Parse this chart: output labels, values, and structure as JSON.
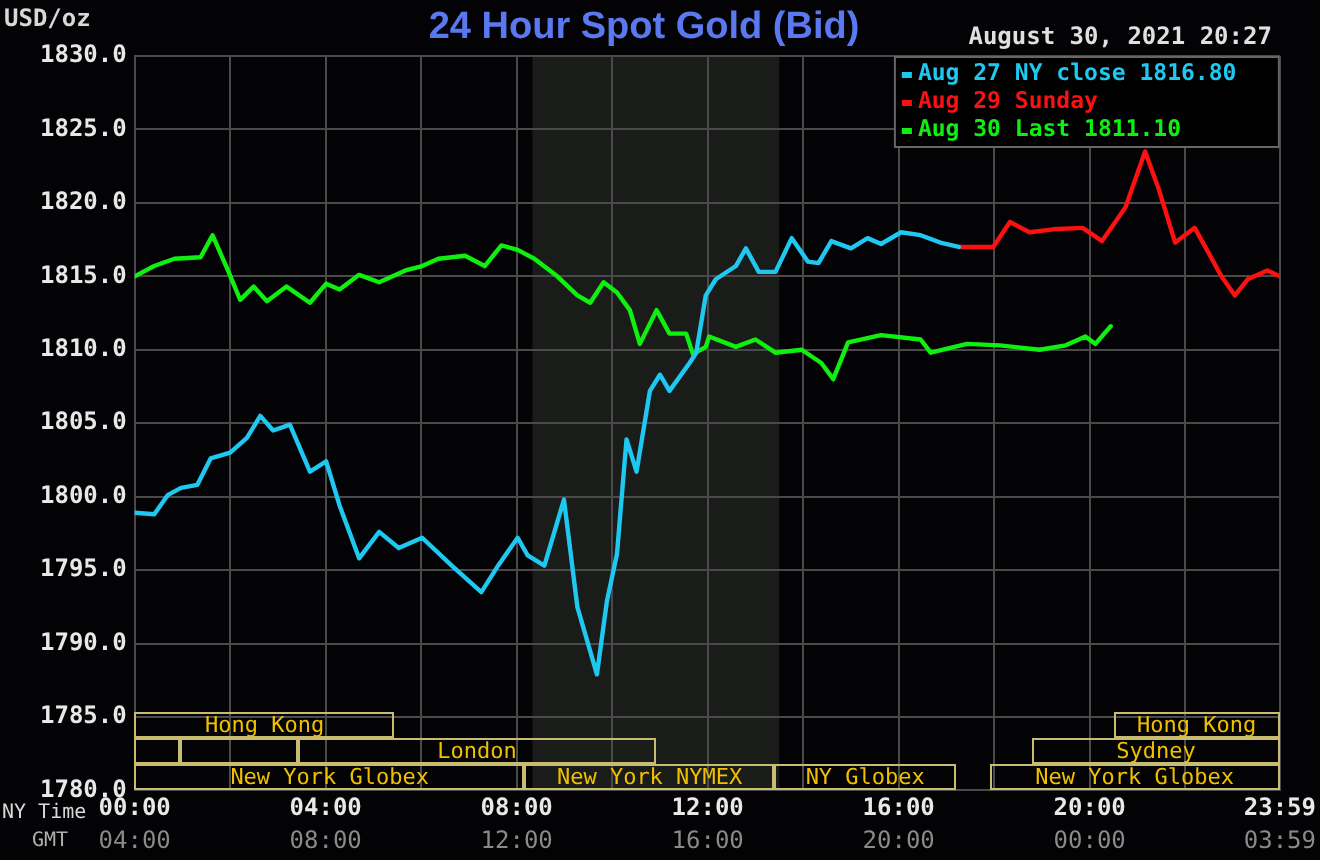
{
  "chart_data": {
    "type": "line",
    "title": "24 Hour Spot Gold (Bid)",
    "ylabel": "USD/oz",
    "xlabel": "NY Time",
    "x2label": "GMT",
    "annotations": [
      "August 30, 2021 20:27",
      "Hong Kong",
      "Hong Kong",
      "London",
      "Sydney",
      "New York Globex",
      "New York NYMEX",
      "NY Globex",
      "New York Globex"
    ],
    "xlim": [
      0,
      23.983
    ],
    "x2lim": [
      "2021-08-30T04:00",
      "2021-08-31T03:59"
    ],
    "ylim": [
      1780,
      1830
    ],
    "xticks": [
      {
        "value": 0,
        "label": "00:00"
      },
      {
        "value": 2,
        "label": null
      },
      {
        "value": 4,
        "label": "04:00"
      },
      {
        "value": 6,
        "label": null
      },
      {
        "value": 8,
        "label": "08:00"
      },
      {
        "value": 10,
        "label": null
      },
      {
        "value": 12,
        "label": "12:00"
      },
      {
        "value": 14,
        "label": null
      },
      {
        "value": 16,
        "label": "16:00"
      },
      {
        "value": 18,
        "label": null
      },
      {
        "value": 20,
        "label": "20:00"
      },
      {
        "value": 22,
        "label": null
      },
      {
        "value": 23.983,
        "label": "23:59"
      }
    ],
    "x2ticks": [
      {
        "value": "2021-08-30T04:00",
        "label": "04:00"
      },
      {
        "value": "2021-08-30T08:00",
        "label": "08:00"
      },
      {
        "value": "2021-08-30T12:00",
        "label": "12:00"
      },
      {
        "value": "2021-08-30T16:00",
        "label": "16:00"
      },
      {
        "value": "2021-08-30T20:00",
        "label": "20:00"
      },
      {
        "value": "2021-08-31T00:00",
        "label": "00:00"
      },
      {
        "value": "2021-08-31T03:59",
        "label": "03:59"
      }
    ],
    "yticks": [
      {
        "value": 1780,
        "label": "1780.0"
      },
      {
        "value": 1785,
        "label": "1785.0"
      },
      {
        "value": 1790,
        "label": "1790.0"
      },
      {
        "value": 1795,
        "label": "1795.0"
      },
      {
        "value": 1800,
        "label": "1800.0"
      },
      {
        "value": 1805,
        "label": "1805.0"
      },
      {
        "value": 1810,
        "label": "1810.0"
      },
      {
        "value": 1815,
        "label": "1815.0"
      },
      {
        "value": 1820,
        "label": "1820.0"
      },
      {
        "value": 1825,
        "label": "1825.0"
      },
      {
        "value": 1830,
        "label": "1830.0"
      }
    ],
    "grid": true,
    "legend": "top right",
    "marker": "none",
    "line_style": "solid",
    "bands": [
      {
        "axis": "x",
        "from": 8.33,
        "to": 13.5,
        "color": "#1a1c19"
      }
    ],
    "series": [
      {
        "name": "Aug 27 NY close 1816.80",
        "color": "#1ec8f0",
        "x": [
          0,
          0.41,
          0.69,
          0.97,
          1.31,
          1.59,
          2.0,
          2.35,
          2.63,
          2.9,
          3.25,
          3.67,
          4.01,
          4.29,
          4.7,
          5.12,
          5.53,
          6.02,
          6.64,
          7.26,
          7.61,
          8.02,
          8.23,
          8.58,
          8.99,
          9.27,
          9.68,
          9.89,
          10.1,
          10.3,
          10.51,
          10.79,
          11.0,
          11.2,
          11.62,
          11.76,
          11.96,
          12.17,
          12.59,
          12.8,
          13.07,
          13.42,
          13.76,
          14.1,
          14.32,
          14.59,
          15.0,
          15.35,
          15.63,
          16.05,
          16.46,
          16.87,
          17.26
        ],
        "values": [
          1798.9,
          1798.8,
          1800.1,
          1800.6,
          1800.8,
          1802.6,
          1803.0,
          1804.0,
          1805.5,
          1804.5,
          1804.9,
          1801.7,
          1802.4,
          1799.4,
          1795.8,
          1797.6,
          1796.5,
          1797.2,
          1795.3,
          1793.5,
          1795.3,
          1797.2,
          1796.0,
          1795.3,
          1799.8,
          1792.5,
          1787.9,
          1792.9,
          1796.1,
          1803.9,
          1801.7,
          1807.2,
          1808.3,
          1807.2,
          1809.1,
          1809.8,
          1813.7,
          1814.8,
          1815.7,
          1816.9,
          1815.3,
          1815.3,
          1817.6,
          1816.0,
          1815.9,
          1817.4,
          1816.9,
          1817.6,
          1817.2,
          1818.0,
          1817.8,
          1817.3,
          1817.0
        ]
      },
      {
        "name": "Aug 29 Sunday",
        "color": "#ff1010",
        "x": [
          17.26,
          17.98,
          18.33,
          18.74,
          19.23,
          19.85,
          20.26,
          20.75,
          21.16,
          21.44,
          21.79,
          22.2,
          22.76,
          23.04,
          23.31,
          23.72,
          23.98
        ],
        "values": [
          1817.0,
          1817.0,
          1818.7,
          1818.0,
          1818.2,
          1818.3,
          1817.4,
          1819.7,
          1823.5,
          1821.0,
          1817.3,
          1818.3,
          1815.0,
          1813.7,
          1814.8,
          1815.4,
          1815.0
        ]
      },
      {
        "name": "Aug 30 Last 1811.10",
        "color": "#10f010",
        "x": [
          0,
          0.41,
          0.83,
          1.38,
          1.63,
          1.94,
          2.21,
          2.49,
          2.77,
          3.18,
          3.67,
          4.01,
          4.29,
          4.7,
          5.12,
          5.67,
          6.02,
          6.36,
          6.92,
          7.33,
          7.68,
          8.02,
          8.37,
          8.85,
          9.27,
          9.54,
          9.82,
          10.1,
          10.37,
          10.58,
          10.93,
          11.2,
          11.55,
          11.69,
          11.96,
          12.03,
          12.59,
          13.0,
          13.42,
          13.97,
          14.38,
          14.63,
          14.94,
          15.63,
          16.46,
          16.67,
          17.43,
          18.12,
          18.95,
          19.5,
          19.91,
          20.12,
          20.44
        ],
        "values": [
          1815.0,
          1815.7,
          1816.2,
          1816.3,
          1817.8,
          1815.5,
          1813.4,
          1814.3,
          1813.3,
          1814.3,
          1813.2,
          1814.5,
          1814.1,
          1815.1,
          1814.6,
          1815.4,
          1815.7,
          1816.2,
          1816.4,
          1815.7,
          1817.1,
          1816.8,
          1816.2,
          1815.0,
          1813.7,
          1813.2,
          1814.6,
          1813.9,
          1812.7,
          1810.4,
          1812.7,
          1811.1,
          1811.1,
          1809.7,
          1810.2,
          1810.9,
          1810.2,
          1810.7,
          1809.8,
          1810.0,
          1809.1,
          1808.0,
          1810.5,
          1811.0,
          1810.7,
          1809.8,
          1810.4,
          1810.3,
          1810.0,
          1810.3,
          1810.9,
          1810.4,
          1811.6
        ]
      }
    ]
  }
}
